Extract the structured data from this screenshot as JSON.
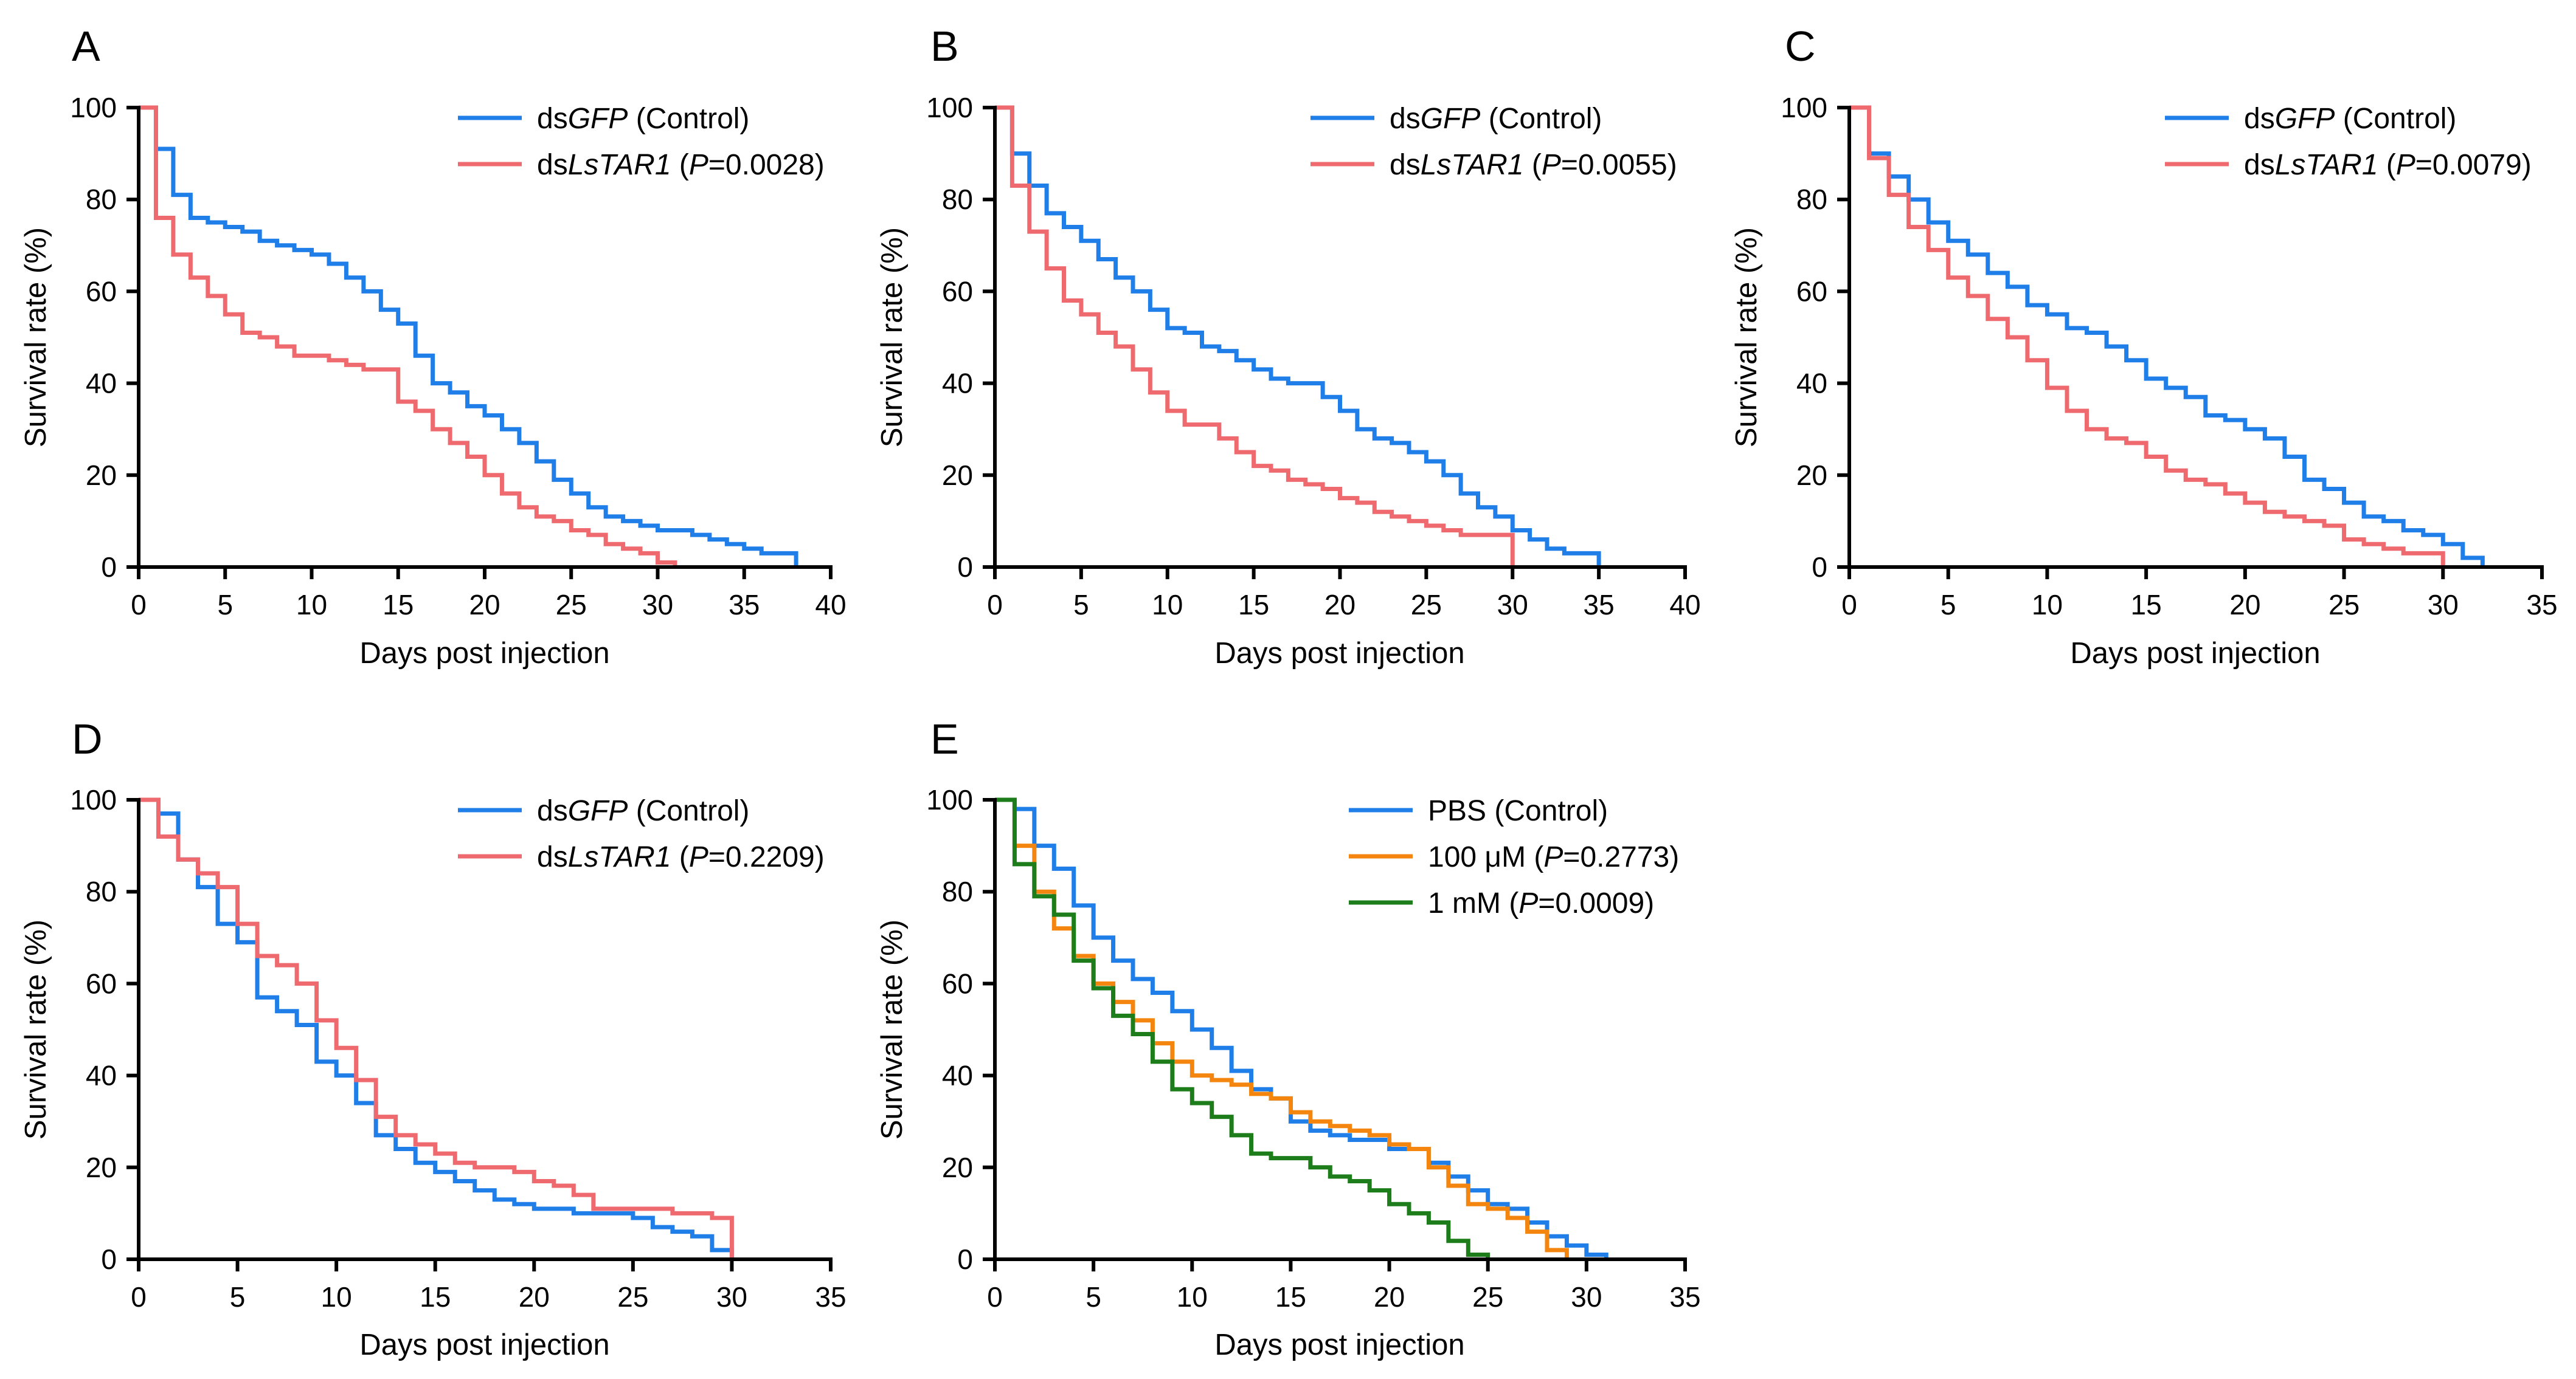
{
  "colors": {
    "blue": "#1f7ee8",
    "red": "#ee6a6f",
    "orange": "#f4860f",
    "green": "#1c7d1a",
    "axis": "#000000"
  },
  "chart_data": [
    {
      "type": "line",
      "step": true,
      "panel": "A",
      "xlabel": "Days post injection",
      "ylabel": "Survival rate (%)",
      "xlim": [
        0,
        40
      ],
      "ylim": [
        0,
        100
      ],
      "xticks": [
        "0",
        "5",
        "10",
        "15",
        "20",
        "25",
        "30",
        "35",
        "40"
      ],
      "yticks": [
        "0",
        "20",
        "40",
        "60",
        "80",
        "100"
      ],
      "series": [
        {
          "name": "dsGFP (Control)",
          "legend": [
            {
              "t": "ds",
              "i": false
            },
            {
              "t": "GFP",
              "i": true
            },
            {
              "t": " (Control)",
              "i": false
            }
          ],
          "color": "blue",
          "x": [
            0,
            1,
            2,
            3,
            4,
            5,
            6,
            7,
            8,
            9,
            10,
            11,
            12,
            13,
            14,
            15,
            16,
            17,
            18,
            19,
            20,
            21,
            22,
            23,
            24,
            25,
            26,
            27,
            28,
            29,
            30,
            31,
            32,
            33,
            34,
            35,
            36,
            37,
            38
          ],
          "y": [
            100,
            91,
            81,
            76,
            75,
            74,
            73,
            71,
            70,
            69,
            68,
            66,
            63,
            60,
            56,
            53,
            46,
            40,
            38,
            35,
            33,
            30,
            27,
            23,
            19,
            16,
            13,
            11,
            10,
            9,
            8,
            8,
            7,
            6,
            5,
            4,
            3,
            3,
            0
          ]
        },
        {
          "name": "dsLsTAR1 (P=0.0028)",
          "legend": [
            {
              "t": "ds",
              "i": false
            },
            {
              "t": "LsTAR1",
              "i": true
            },
            {
              "t": " (",
              "i": false
            },
            {
              "t": "P",
              "i": true
            },
            {
              "t": "=0.0028)",
              "i": false
            }
          ],
          "color": "red",
          "x": [
            0,
            1,
            2,
            3,
            4,
            5,
            6,
            7,
            8,
            9,
            10,
            11,
            12,
            13,
            14,
            15,
            16,
            17,
            18,
            19,
            20,
            21,
            22,
            23,
            24,
            25,
            26,
            27,
            28,
            29,
            30,
            31
          ],
          "y": [
            100,
            76,
            68,
            63,
            59,
            55,
            51,
            50,
            48,
            46,
            46,
            45,
            44,
            43,
            43,
            36,
            34,
            30,
            27,
            24,
            20,
            16,
            13,
            11,
            10,
            8,
            7,
            5,
            4,
            3,
            1,
            0
          ]
        }
      ]
    },
    {
      "type": "line",
      "step": true,
      "panel": "B",
      "xlabel": "Days post injection",
      "ylabel": "Survival rate (%)",
      "xlim": [
        0,
        40
      ],
      "ylim": [
        0,
        100
      ],
      "xticks": [
        "0",
        "5",
        "10",
        "15",
        "20",
        "25",
        "30",
        "35",
        "40"
      ],
      "yticks": [
        "0",
        "20",
        "40",
        "60",
        "80",
        "100"
      ],
      "series": [
        {
          "name": "dsGFP (Control)",
          "legend": [
            {
              "t": "ds",
              "i": false
            },
            {
              "t": "GFP",
              "i": true
            },
            {
              "t": " (Control)",
              "i": false
            }
          ],
          "color": "blue",
          "x": [
            0,
            1,
            2,
            3,
            4,
            5,
            6,
            7,
            8,
            9,
            10,
            11,
            12,
            13,
            14,
            15,
            16,
            17,
            18,
            19,
            20,
            21,
            22,
            23,
            24,
            25,
            26,
            27,
            28,
            29,
            30,
            31,
            32,
            33,
            34,
            35
          ],
          "y": [
            100,
            90,
            83,
            77,
            74,
            71,
            67,
            63,
            60,
            56,
            52,
            51,
            48,
            47,
            45,
            43,
            41,
            40,
            40,
            37,
            34,
            30,
            28,
            27,
            25,
            23,
            20,
            16,
            13,
            11,
            8,
            6,
            4,
            3,
            3,
            0
          ]
        },
        {
          "name": "dsLsTAR1 (P=0.0055)",
          "legend": [
            {
              "t": "ds",
              "i": false
            },
            {
              "t": "LsTAR1",
              "i": true
            },
            {
              "t": " (",
              "i": false
            },
            {
              "t": "P",
              "i": true
            },
            {
              "t": "=0.0055)",
              "i": false
            }
          ],
          "color": "red",
          "x": [
            0,
            1,
            2,
            3,
            4,
            5,
            6,
            7,
            8,
            9,
            10,
            11,
            12,
            13,
            14,
            15,
            16,
            17,
            18,
            19,
            20,
            21,
            22,
            23,
            24,
            25,
            26,
            27,
            28,
            29,
            30
          ],
          "y": [
            100,
            83,
            73,
            65,
            58,
            55,
            51,
            48,
            43,
            38,
            34,
            31,
            31,
            28,
            25,
            22,
            21,
            19,
            18,
            17,
            15,
            14,
            12,
            11,
            10,
            9,
            8,
            7,
            7,
            7,
            0
          ]
        }
      ]
    },
    {
      "type": "line",
      "step": true,
      "panel": "C",
      "xlabel": "Days post injection",
      "ylabel": "Survival rate (%)",
      "xlim": [
        0,
        35
      ],
      "ylim": [
        0,
        100
      ],
      "xticks": [
        "0",
        "5",
        "10",
        "15",
        "20",
        "25",
        "30",
        "35"
      ],
      "yticks": [
        "0",
        "20",
        "40",
        "60",
        "80",
        "100"
      ],
      "series": [
        {
          "name": "dsGFP (Control)",
          "legend": [
            {
              "t": "ds",
              "i": false
            },
            {
              "t": "GFP",
              "i": true
            },
            {
              "t": " (Control)",
              "i": false
            }
          ],
          "color": "blue",
          "x": [
            0,
            1,
            2,
            3,
            4,
            5,
            6,
            7,
            8,
            9,
            10,
            11,
            12,
            13,
            14,
            15,
            16,
            17,
            18,
            19,
            20,
            21,
            22,
            23,
            24,
            25,
            26,
            27,
            28,
            29,
            30,
            31,
            32
          ],
          "y": [
            100,
            90,
            85,
            80,
            75,
            71,
            68,
            64,
            61,
            57,
            55,
            52,
            51,
            48,
            45,
            41,
            39,
            37,
            33,
            32,
            30,
            28,
            24,
            19,
            17,
            14,
            11,
            10,
            8,
            7,
            5,
            2,
            0
          ]
        },
        {
          "name": "dsLsTAR1 (P=0.0079)",
          "legend": [
            {
              "t": "ds",
              "i": false
            },
            {
              "t": "LsTAR1",
              "i": true
            },
            {
              "t": " (",
              "i": false
            },
            {
              "t": "P",
              "i": true
            },
            {
              "t": "=0.0079)",
              "i": false
            }
          ],
          "color": "red",
          "x": [
            0,
            1,
            2,
            3,
            4,
            5,
            6,
            7,
            8,
            9,
            10,
            11,
            12,
            13,
            14,
            15,
            16,
            17,
            18,
            19,
            20,
            21,
            22,
            23,
            24,
            25,
            26,
            27,
            28,
            29,
            30
          ],
          "y": [
            100,
            89,
            81,
            74,
            69,
            63,
            59,
            54,
            50,
            45,
            39,
            34,
            30,
            28,
            27,
            24,
            21,
            19,
            18,
            16,
            14,
            12,
            11,
            10,
            9,
            6,
            5,
            4,
            3,
            3,
            0
          ]
        }
      ]
    },
    {
      "type": "line",
      "step": true,
      "panel": "D",
      "xlabel": "Days post injection",
      "ylabel": "Survival rate (%)",
      "xlim": [
        0,
        35
      ],
      "ylim": [
        0,
        100
      ],
      "xticks": [
        "0",
        "5",
        "10",
        "15",
        "20",
        "25",
        "30",
        "35"
      ],
      "yticks": [
        "0",
        "20",
        "40",
        "60",
        "80",
        "100"
      ],
      "series": [
        {
          "name": "dsGFP (Control)",
          "legend": [
            {
              "t": "ds",
              "i": false
            },
            {
              "t": "GFP",
              "i": true
            },
            {
              "t": " (Control)",
              "i": false
            }
          ],
          "color": "blue",
          "x": [
            0,
            1,
            2,
            3,
            4,
            5,
            6,
            7,
            8,
            9,
            10,
            11,
            12,
            13,
            14,
            15,
            16,
            17,
            18,
            19,
            20,
            21,
            22,
            23,
            24,
            25,
            26,
            27,
            28,
            29,
            30
          ],
          "y": [
            100,
            97,
            87,
            81,
            73,
            69,
            57,
            54,
            51,
            43,
            40,
            34,
            27,
            24,
            21,
            19,
            17,
            15,
            13,
            12,
            11,
            11,
            10,
            10,
            10,
            9,
            7,
            6,
            5,
            2,
            0
          ]
        },
        {
          "name": "dsLsTAR1 (P=0.2209)",
          "legend": [
            {
              "t": "ds",
              "i": false
            },
            {
              "t": "LsTAR1",
              "i": true
            },
            {
              "t": " (",
              "i": false
            },
            {
              "t": "P",
              "i": true
            },
            {
              "t": "=0.2209)",
              "i": false
            }
          ],
          "color": "red",
          "x": [
            0,
            1,
            2,
            3,
            4,
            5,
            6,
            7,
            8,
            9,
            10,
            11,
            12,
            13,
            14,
            15,
            16,
            17,
            18,
            19,
            20,
            21,
            22,
            23,
            24,
            25,
            26,
            27,
            28,
            29,
            30
          ],
          "y": [
            100,
            92,
            87,
            84,
            81,
            73,
            66,
            64,
            60,
            52,
            46,
            39,
            31,
            27,
            25,
            23,
            21,
            20,
            20,
            19,
            17,
            16,
            14,
            11,
            11,
            11,
            11,
            10,
            10,
            9,
            0
          ]
        }
      ]
    },
    {
      "type": "line",
      "step": true,
      "panel": "E",
      "xlabel": "Days post injection",
      "ylabel": "Survival rate (%)",
      "xlim": [
        0,
        35
      ],
      "ylim": [
        0,
        100
      ],
      "xticks": [
        "0",
        "5",
        "10",
        "15",
        "20",
        "25",
        "30",
        "35"
      ],
      "yticks": [
        "0",
        "20",
        "40",
        "60",
        "80",
        "100"
      ],
      "series": [
        {
          "name": "PBS (Control)",
          "legend": [
            {
              "t": "PBS (Control)",
              "i": false
            }
          ],
          "color": "blue",
          "x": [
            0,
            1,
            2,
            3,
            4,
            5,
            6,
            7,
            8,
            9,
            10,
            11,
            12,
            13,
            14,
            15,
            16,
            17,
            18,
            19,
            20,
            21,
            22,
            23,
            24,
            25,
            26,
            27,
            28,
            29,
            30,
            31
          ],
          "y": [
            100,
            98,
            90,
            85,
            77,
            70,
            65,
            61,
            58,
            54,
            50,
            46,
            41,
            37,
            35,
            30,
            28,
            27,
            26,
            26,
            24,
            24,
            21,
            18,
            15,
            12,
            11,
            8,
            5,
            3,
            1,
            0
          ]
        },
        {
          "name": "100 μM (P=0.2773)",
          "legend": [
            {
              "t": "100 μM (",
              "i": false
            },
            {
              "t": "P",
              "i": true
            },
            {
              "t": "=0.2773)",
              "i": false
            }
          ],
          "color": "orange",
          "x": [
            0,
            1,
            2,
            3,
            4,
            5,
            6,
            7,
            8,
            9,
            10,
            11,
            12,
            13,
            14,
            15,
            16,
            17,
            18,
            19,
            20,
            21,
            22,
            23,
            24,
            25,
            26,
            27,
            28,
            29
          ],
          "y": [
            100,
            90,
            80,
            72,
            66,
            60,
            56,
            52,
            47,
            43,
            40,
            39,
            38,
            36,
            35,
            32,
            30,
            29,
            28,
            27,
            25,
            24,
            20,
            16,
            12,
            11,
            9,
            6,
            2,
            0
          ]
        },
        {
          "name": "1 mM (P=0.0009)",
          "legend": [
            {
              "t": "1 mM    (",
              "i": false
            },
            {
              "t": "P",
              "i": true
            },
            {
              "t": "=0.0009)",
              "i": false
            }
          ],
          "color": "green",
          "x": [
            0,
            1,
            2,
            3,
            4,
            5,
            6,
            7,
            8,
            9,
            10,
            11,
            12,
            13,
            14,
            15,
            16,
            17,
            18,
            19,
            20,
            21,
            22,
            23,
            24,
            25
          ],
          "y": [
            100,
            86,
            79,
            75,
            65,
            59,
            53,
            49,
            43,
            37,
            34,
            31,
            27,
            23,
            22,
            22,
            20,
            18,
            17,
            15,
            12,
            10,
            8,
            4,
            1,
            0
          ]
        }
      ]
    }
  ]
}
